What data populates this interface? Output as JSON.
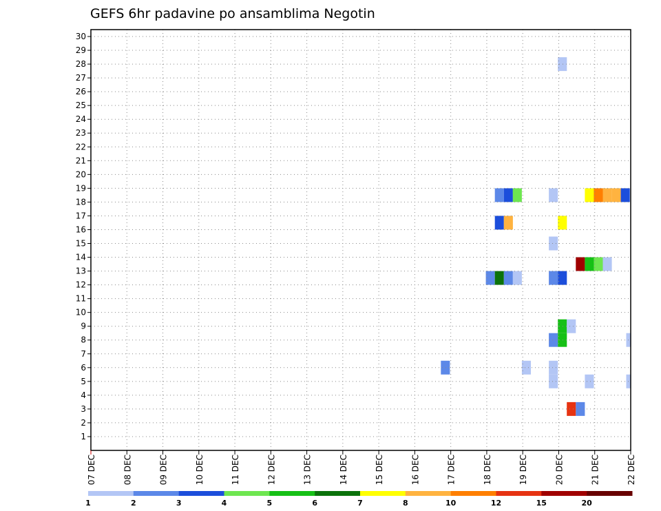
{
  "chart_data": {
    "type": "heatmap",
    "title": "GEFS 6hr padavine po ansamblima Negotin",
    "xlabel": "",
    "ylabel": "",
    "x_tick_labels": [
      "07 DEC",
      "08 DEC",
      "09 DEC",
      "10 DEC",
      "11 DEC",
      "12 DEC",
      "13 DEC",
      "14 DEC",
      "15 DEC",
      "16 DEC",
      "17 DEC",
      "18 DEC",
      "19 DEC",
      "20 DEC",
      "21 DEC",
      "22 DEC"
    ],
    "y_tick_labels": [
      "1",
      "2",
      "3",
      "4",
      "5",
      "6",
      "7",
      "8",
      "9",
      "10",
      "11",
      "12",
      "13",
      "14",
      "15",
      "16",
      "17",
      "18",
      "19",
      "20",
      "21",
      "22",
      "23",
      "24",
      "25",
      "26",
      "27",
      "28",
      "29",
      "30"
    ],
    "xlim_days": [
      0,
      15
    ],
    "ylim": [
      0,
      30.5
    ],
    "grid": true,
    "legend": {
      "placement": "bottom",
      "boundaries": [
        "1",
        "2",
        "3",
        "4",
        "5",
        "6",
        "7",
        "8",
        "10",
        "12",
        "15",
        "20"
      ],
      "colors": [
        "#b3c6f5",
        "#5c88e8",
        "#1c4edb",
        "#6ee650",
        "#16c016",
        "#0b720b",
        "#ffff00",
        "#ffb340",
        "#ff7f00",
        "#e63312",
        "#a00000",
        "#680000"
      ]
    },
    "cells": [
      {
        "member": 28,
        "day": 13.1,
        "value": 1.5
      },
      {
        "member": 18.5,
        "day": 11.35,
        "value": 2.5
      },
      {
        "member": 18.5,
        "day": 11.6,
        "value": 3.5
      },
      {
        "member": 18.5,
        "day": 11.85,
        "value": 4.5
      },
      {
        "member": 18.5,
        "day": 12.85,
        "value": 1.5
      },
      {
        "member": 18.5,
        "day": 13.85,
        "value": 7.5
      },
      {
        "member": 18.5,
        "day": 14.1,
        "value": 11
      },
      {
        "member": 18.5,
        "day": 14.35,
        "value": 9
      },
      {
        "member": 18.5,
        "day": 14.6,
        "value": 9
      },
      {
        "member": 18.5,
        "day": 14.85,
        "value": 3.5
      },
      {
        "member": 16.5,
        "day": 11.35,
        "value": 3.5
      },
      {
        "member": 16.5,
        "day": 11.6,
        "value": 9
      },
      {
        "member": 16.5,
        "day": 13.1,
        "value": 7.5
      },
      {
        "member": 15,
        "day": 12.85,
        "value": 1.5
      },
      {
        "member": 13.5,
        "day": 13.6,
        "value": 17.5
      },
      {
        "member": 13.5,
        "day": 13.85,
        "value": 5.5
      },
      {
        "member": 13.5,
        "day": 14.1,
        "value": 4.5
      },
      {
        "member": 13.5,
        "day": 14.35,
        "value": 1.5
      },
      {
        "member": 12.5,
        "day": 11.1,
        "value": 2.5
      },
      {
        "member": 12.5,
        "day": 11.35,
        "value": 6.5
      },
      {
        "member": 12.5,
        "day": 11.6,
        "value": 2.5
      },
      {
        "member": 12.5,
        "day": 11.85,
        "value": 1.5
      },
      {
        "member": 12.5,
        "day": 12.85,
        "value": 2.5
      },
      {
        "member": 12.5,
        "day": 13.1,
        "value": 3.5
      },
      {
        "member": 9,
        "day": 13.1,
        "value": 5.5
      },
      {
        "member": 9,
        "day": 13.35,
        "value": 1.5
      },
      {
        "member": 8,
        "day": 12.85,
        "value": 2.5
      },
      {
        "member": 8,
        "day": 13.1,
        "value": 5.5
      },
      {
        "member": 8,
        "day": 15,
        "value": 1.5
      },
      {
        "member": 6,
        "day": 9.85,
        "value": 2.5
      },
      {
        "member": 6,
        "day": 12.1,
        "value": 1.5
      },
      {
        "member": 6,
        "day": 12.85,
        "value": 1.5
      },
      {
        "member": 5,
        "day": 12.85,
        "value": 1.5
      },
      {
        "member": 5,
        "day": 13.85,
        "value": 1.5
      },
      {
        "member": 5,
        "day": 15,
        "value": 1.5
      },
      {
        "member": 3,
        "day": 13.35,
        "value": 13.5
      },
      {
        "member": 3,
        "day": 13.6,
        "value": 2.5
      }
    ]
  }
}
